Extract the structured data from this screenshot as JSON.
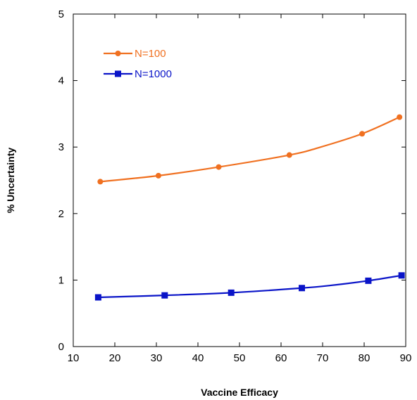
{
  "chart_data": {
    "type": "line",
    "title": "",
    "xlabel": "Vaccine Efficacy",
    "ylabel": "% Uncertainty",
    "xlim": [
      10,
      90
    ],
    "ylim": [
      0,
      5
    ],
    "xticks": [
      10,
      20,
      30,
      40,
      50,
      60,
      70,
      80,
      90
    ],
    "yticks": [
      0,
      1,
      2,
      3,
      4,
      5
    ],
    "grid": false,
    "legend_position": "top-left",
    "series": [
      {
        "name": "N=100",
        "color": "#F07020",
        "marker": "circle",
        "x": [
          16.5,
          30.5,
          45,
          62,
          69,
          79.5,
          88.5
        ],
        "y": [
          2.48,
          2.57,
          2.7,
          2.88,
          2.99,
          3.2,
          3.45
        ],
        "marker_x": [
          16.5,
          30.5,
          45,
          62,
          79.5,
          88.5
        ],
        "marker_y": [
          2.48,
          2.57,
          2.7,
          2.88,
          3.2,
          3.45
        ]
      },
      {
        "name": "N=1000",
        "color": "#0A14C8",
        "marker": "square",
        "x": [
          16,
          32,
          48,
          65,
          72,
          81,
          89
        ],
        "y": [
          0.74,
          0.77,
          0.81,
          0.88,
          0.92,
          0.99,
          1.07
        ],
        "marker_x": [
          16,
          32,
          48,
          65,
          81,
          89
        ],
        "marker_y": [
          0.74,
          0.77,
          0.81,
          0.88,
          0.99,
          1.07
        ]
      }
    ]
  }
}
